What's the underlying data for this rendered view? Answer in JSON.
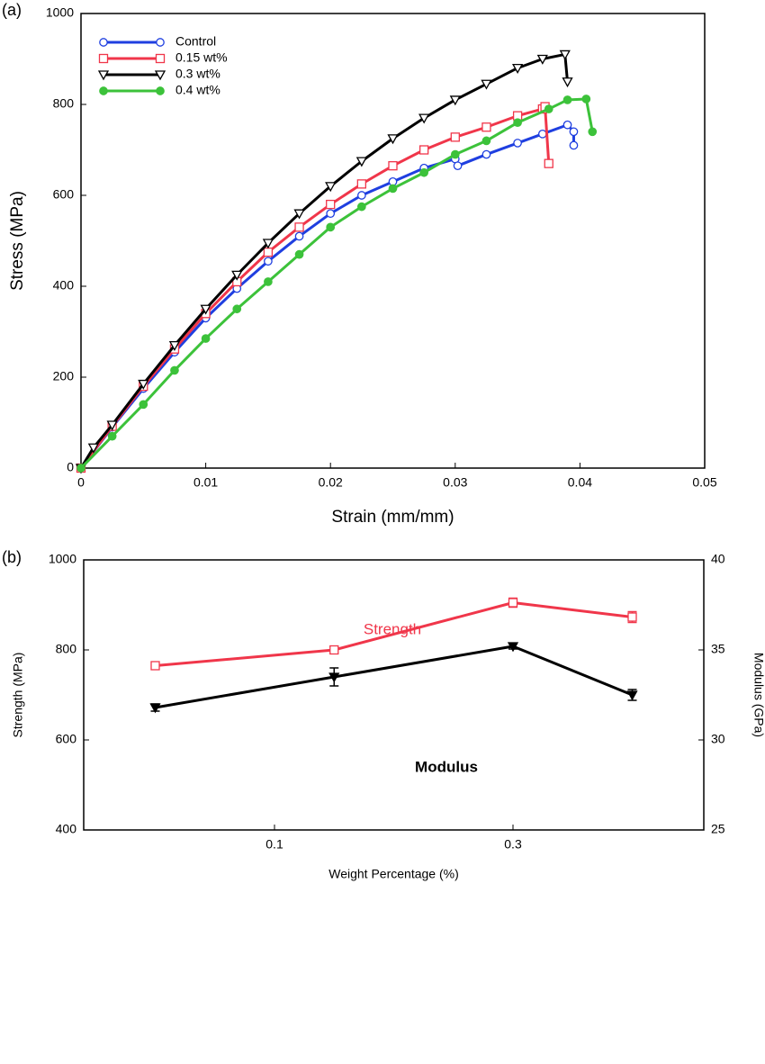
{
  "chart_data": [
    {
      "type": "line",
      "panel_label": "(a)",
      "xlabel": "Strain (mm/mm)",
      "ylabel": "Stress (MPa)",
      "xlim": [
        0,
        0.05
      ],
      "xticks": [
        0,
        0.01,
        0.02,
        0.03,
        0.04,
        0.05
      ],
      "ylim": [
        0,
        1000
      ],
      "yticks": [
        0,
        200,
        400,
        600,
        800,
        1000
      ],
      "legend": "upper left",
      "series": [
        {
          "name": "Control",
          "color": "#1f3fe0",
          "marker": "open-circle",
          "x": [
            0,
            0.0025,
            0.005,
            0.0075,
            0.01,
            0.0125,
            0.015,
            0.0175,
            0.02,
            0.0225,
            0.025,
            0.0275,
            0.03,
            0.0302,
            0.0325,
            0.035,
            0.037,
            0.039,
            0.0395,
            0.0395
          ],
          "values": [
            0,
            90,
            175,
            255,
            330,
            395,
            455,
            510,
            560,
            600,
            630,
            660,
            680,
            665,
            690,
            715,
            735,
            755,
            740,
            710
          ]
        },
        {
          "name": "0.15 wt%",
          "color": "#f0364a",
          "marker": "open-square",
          "x": [
            0,
            0.0025,
            0.005,
            0.0075,
            0.01,
            0.0125,
            0.015,
            0.0175,
            0.02,
            0.0225,
            0.025,
            0.0275,
            0.03,
            0.0325,
            0.035,
            0.037,
            0.0372,
            0.0375
          ],
          "values": [
            0,
            92,
            180,
            262,
            340,
            410,
            475,
            530,
            580,
            625,
            665,
            700,
            728,
            750,
            775,
            790,
            795,
            670
          ]
        },
        {
          "name": "0.3 wt%",
          "color": "#000000",
          "marker": "open-triangle-down",
          "x": [
            0,
            0.001,
            0.0025,
            0.005,
            0.0075,
            0.01,
            0.0125,
            0.015,
            0.0175,
            0.02,
            0.0225,
            0.025,
            0.0275,
            0.03,
            0.0325,
            0.035,
            0.037,
            0.0388,
            0.039
          ],
          "values": [
            0,
            45,
            95,
            185,
            270,
            350,
            425,
            495,
            560,
            620,
            675,
            725,
            770,
            810,
            845,
            880,
            900,
            910,
            850
          ]
        },
        {
          "name": "0.4 wt%",
          "color": "#3cc23a",
          "marker": "filled-circle",
          "x": [
            0,
            0.0025,
            0.005,
            0.0075,
            0.01,
            0.0125,
            0.015,
            0.0175,
            0.02,
            0.0225,
            0.025,
            0.0275,
            0.03,
            0.0325,
            0.035,
            0.0375,
            0.039,
            0.0405,
            0.041
          ],
          "values": [
            0,
            70,
            140,
            215,
            285,
            350,
            410,
            470,
            530,
            575,
            615,
            650,
            690,
            720,
            760,
            790,
            810,
            812,
            740
          ]
        }
      ]
    },
    {
      "type": "line",
      "panel_label": "(b)",
      "xlabel": "Weight Percentage (%)",
      "ylabel": "Strength (MPa)",
      "y2label": "Modulus (GPa)",
      "x": [
        0,
        0.15,
        0.3,
        0.4
      ],
      "xlim": [
        -0.06,
        0.46
      ],
      "xticks": [
        0.1,
        0.3
      ],
      "ylim": [
        400,
        1000
      ],
      "yticks": [
        400,
        600,
        800,
        1000
      ],
      "y2lim": [
        25,
        40
      ],
      "y2ticks": [
        25,
        30,
        35,
        40
      ],
      "annotations": [
        "Strength",
        "Modulus"
      ],
      "series": [
        {
          "name": "Strength",
          "color": "#f0364a",
          "marker": "open-square",
          "values": [
            765,
            800,
            905,
            873
          ],
          "errors": [
            8,
            7,
            10,
            12
          ]
        },
        {
          "name": "Modulus",
          "color": "#000000",
          "marker": "filled-triangle-down",
          "axis": "y2",
          "values": [
            31.8,
            33.5,
            35.2,
            32.5
          ],
          "errors": [
            0.2,
            0.5,
            0.15,
            0.3
          ]
        }
      ]
    }
  ]
}
